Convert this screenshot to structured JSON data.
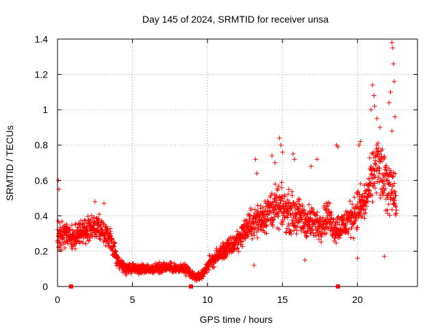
{
  "chart_data": {
    "type": "scatter",
    "title": "Day 145 of 2024, SRMTID for receiver unsa",
    "xlabel": "GPS time / hours",
    "ylabel": "SRMTID / TECUs",
    "xlim": [
      0,
      24
    ],
    "ylim": [
      0,
      1.4
    ],
    "xticks": [
      0,
      5,
      10,
      15,
      20
    ],
    "yticks": [
      0,
      0.2,
      0.4,
      0.6,
      0.8,
      1,
      1.2,
      1.4
    ],
    "xtick_labels": [
      "0",
      "5",
      "10",
      "15",
      "20"
    ],
    "ytick_labels": [
      "0",
      "0.2",
      "0.4",
      "0.6",
      "0.8",
      "1",
      "1.2",
      "1.4"
    ],
    "grid": true,
    "marker": "+",
    "color": "#ff0000",
    "axis_markers_x": [
      0.9,
      8.9,
      18.7
    ],
    "series": [
      {
        "name": "SRMTID",
        "trend": {
          "x": [
            0,
            0.5,
            1,
            1.5,
            2,
            2.5,
            3,
            3.5,
            4,
            4.5,
            5,
            5.5,
            6,
            6.5,
            7,
            7.5,
            8,
            8.5,
            9,
            9.3,
            9.7,
            10,
            10.5,
            11,
            11.5,
            12,
            12.5,
            13,
            13.5,
            14,
            14.5,
            15,
            15.5,
            16,
            16.5,
            17,
            17.5,
            18,
            18.5,
            19,
            19.5,
            20,
            20.5,
            21,
            21.3,
            21.6,
            22,
            22.3,
            22.6
          ],
          "y": [
            0.28,
            0.3,
            0.27,
            0.3,
            0.32,
            0.34,
            0.3,
            0.27,
            0.15,
            0.1,
            0.11,
            0.1,
            0.1,
            0.1,
            0.11,
            0.11,
            0.1,
            0.1,
            0.06,
            0.05,
            0.07,
            0.12,
            0.16,
            0.2,
            0.22,
            0.26,
            0.32,
            0.36,
            0.38,
            0.42,
            0.45,
            0.44,
            0.42,
            0.4,
            0.37,
            0.36,
            0.35,
            0.4,
            0.33,
            0.34,
            0.38,
            0.44,
            0.47,
            0.62,
            0.7,
            0.63,
            0.55,
            0.6,
            0.45
          ],
          "spread": [
            0.1,
            0.1,
            0.1,
            0.1,
            0.1,
            0.1,
            0.1,
            0.09,
            0.06,
            0.05,
            0.04,
            0.04,
            0.04,
            0.04,
            0.04,
            0.04,
            0.04,
            0.05,
            0.04,
            0.03,
            0.04,
            0.05,
            0.06,
            0.07,
            0.08,
            0.09,
            0.1,
            0.12,
            0.14,
            0.15,
            0.16,
            0.16,
            0.16,
            0.15,
            0.14,
            0.13,
            0.12,
            0.13,
            0.12,
            0.12,
            0.14,
            0.16,
            0.16,
            0.2,
            0.24,
            0.24,
            0.22,
            0.22,
            0.15
          ]
        },
        "outliers": [
          {
            "x": 0.05,
            "y": 0.6
          },
          {
            "x": 0.1,
            "y": 0.55
          },
          {
            "x": 2.5,
            "y": 0.48
          },
          {
            "x": 3.1,
            "y": 0.47
          },
          {
            "x": 14.3,
            "y": 0.74
          },
          {
            "x": 14.5,
            "y": 0.7
          },
          {
            "x": 14.8,
            "y": 0.84
          },
          {
            "x": 14.9,
            "y": 0.8
          },
          {
            "x": 15.0,
            "y": 0.76
          },
          {
            "x": 15.7,
            "y": 0.75
          },
          {
            "x": 15.8,
            "y": 0.72
          },
          {
            "x": 18.6,
            "y": 0.8
          },
          {
            "x": 18.7,
            "y": 0.79
          },
          {
            "x": 20.1,
            "y": 0.8
          },
          {
            "x": 20.2,
            "y": 0.82
          },
          {
            "x": 20.9,
            "y": 1.0
          },
          {
            "x": 21.0,
            "y": 1.14
          },
          {
            "x": 21.1,
            "y": 1.08
          },
          {
            "x": 21.15,
            "y": 1.02
          },
          {
            "x": 21.3,
            "y": 0.95
          },
          {
            "x": 21.5,
            "y": 0.9
          },
          {
            "x": 22.1,
            "y": 1.04
          },
          {
            "x": 22.2,
            "y": 1.1
          },
          {
            "x": 22.3,
            "y": 1.38
          },
          {
            "x": 22.35,
            "y": 1.35
          },
          {
            "x": 22.4,
            "y": 1.26
          },
          {
            "x": 22.45,
            "y": 1.16
          },
          {
            "x": 22.5,
            "y": 0.96
          },
          {
            "x": 22.3,
            "y": 0.88
          },
          {
            "x": 21.8,
            "y": 0.17
          },
          {
            "x": 20.0,
            "y": 0.16
          },
          {
            "x": 16.5,
            "y": 0.15
          },
          {
            "x": 13.1,
            "y": 0.12
          },
          {
            "x": 13.3,
            "y": 0.64
          },
          {
            "x": 13.2,
            "y": 0.72
          },
          {
            "x": 16.9,
            "y": 0.68
          },
          {
            "x": 17.3,
            "y": 0.72
          }
        ]
      }
    ]
  }
}
